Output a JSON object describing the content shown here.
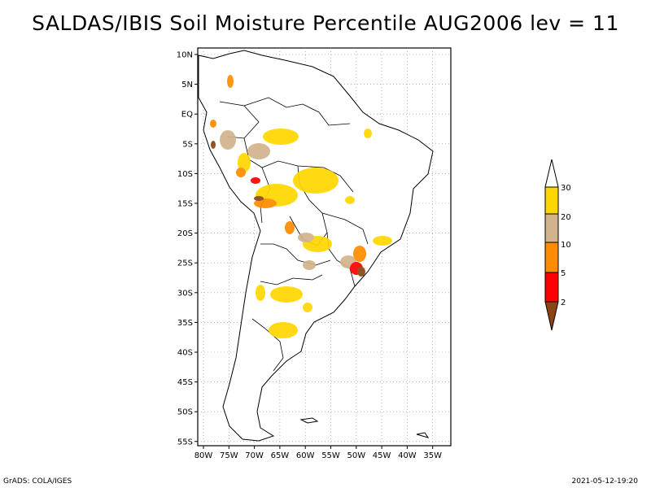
{
  "title": "SALDAS/IBIS Soil Moisture Percentile AUG2006 lev = 11",
  "footer": {
    "left": "GrADS: COLA/IGES",
    "right": "2021-05-12-19:20"
  },
  "map": {
    "lat_ticks": [
      "10N",
      "5N",
      "EQ",
      "5S",
      "10S",
      "15S",
      "20S",
      "25S",
      "30S",
      "35S",
      "40S",
      "45S",
      "50S",
      "55S"
    ],
    "lon_ticks": [
      "80W",
      "75W",
      "70W",
      "65W",
      "60W",
      "55W",
      "50W",
      "45W",
      "40W",
      "35W"
    ],
    "grid": true,
    "region": "South America"
  },
  "colorbar": {
    "labels": [
      "2",
      "5",
      "10",
      "20",
      "30"
    ],
    "colors": {
      "below_2": "#8b4513",
      "c2_5": "#ff0000",
      "c5_10": "#ff8c00",
      "c10_20": "#d2b48c",
      "c20_30": "#ffd700",
      "above_30": "#ffffff"
    }
  }
}
